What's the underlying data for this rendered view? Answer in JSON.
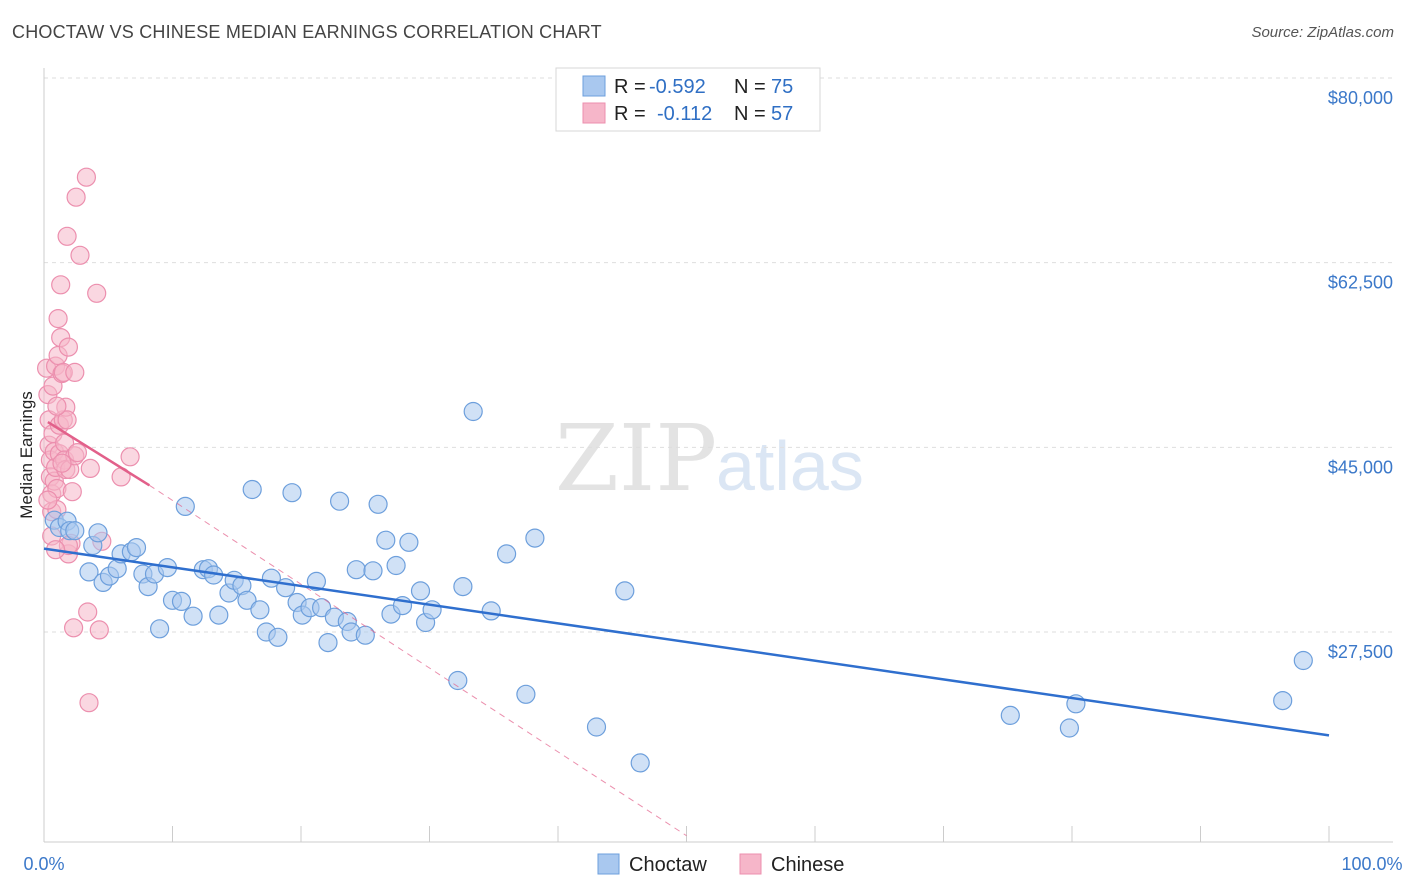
{
  "header": {
    "title": "CHOCTAW VS CHINESE MEDIAN EARNINGS CORRELATION CHART",
    "source": "Source: ZipAtlas.com"
  },
  "watermark": {
    "zip": "ZIP",
    "atlas": "atlas"
  },
  "colors": {
    "choctaw_fill": "#a9c8ef",
    "choctaw_stroke": "#6d9fdc",
    "choctaw_line": "#2f6fce",
    "chinese_fill": "#f6b6c9",
    "chinese_stroke": "#ec8fae",
    "chinese_line": "#e2608a",
    "axis_text": "#3b78c9",
    "grid": "#dedede"
  },
  "legend": {
    "choctaw": {
      "r_label": "R =",
      "r_value": "-0.592",
      "n_label": "N =",
      "n_value": "75"
    },
    "chinese": {
      "r_label": "R =",
      "r_value": "-0.112",
      "n_label": "N =",
      "n_value": "57"
    }
  },
  "bottom_legend": {
    "choctaw": "Choctaw",
    "chinese": "Chinese"
  },
  "chart_data": {
    "type": "scatter",
    "title": "CHOCTAW VS CHINESE MEDIAN EARNINGS CORRELATION CHART",
    "xlabel": "",
    "ylabel": "Median Earnings",
    "xlim": [
      0,
      100
    ],
    "ylim": [
      9000,
      84000
    ],
    "x_tick_labels": [
      "0.0%",
      "100.0%"
    ],
    "y_ticks": [
      27500,
      45000,
      62500,
      80000
    ],
    "y_tick_labels": [
      "$27,500",
      "$45,000",
      "$62,500",
      "$80,000"
    ],
    "grid": true,
    "series": [
      {
        "name": "Choctaw",
        "r": -0.592,
        "n": 75,
        "trend": {
          "x": [
            0,
            100
          ],
          "y": [
            37200,
            19500
          ]
        },
        "points": [
          [
            0.8,
            39900
          ],
          [
            1.2,
            39200
          ],
          [
            1.8,
            39800
          ],
          [
            2.0,
            38900
          ],
          [
            2.4,
            38900
          ],
          [
            3.5,
            35000
          ],
          [
            3.8,
            37500
          ],
          [
            4.2,
            38700
          ],
          [
            4.6,
            34000
          ],
          [
            5.1,
            34600
          ],
          [
            5.7,
            35300
          ],
          [
            6.0,
            36700
          ],
          [
            6.8,
            36900
          ],
          [
            7.2,
            37300
          ],
          [
            7.7,
            34800
          ],
          [
            8.1,
            33600
          ],
          [
            8.6,
            34800
          ],
          [
            9.0,
            29600
          ],
          [
            9.6,
            35400
          ],
          [
            10.0,
            32300
          ],
          [
            10.7,
            32200
          ],
          [
            11.0,
            41200
          ],
          [
            11.6,
            30800
          ],
          [
            12.4,
            35200
          ],
          [
            12.8,
            35300
          ],
          [
            13.2,
            34700
          ],
          [
            13.6,
            30900
          ],
          [
            14.4,
            33000
          ],
          [
            14.8,
            34200
          ],
          [
            15.4,
            33700
          ],
          [
            15.8,
            32300
          ],
          [
            16.2,
            42800
          ],
          [
            16.8,
            31400
          ],
          [
            17.3,
            29300
          ],
          [
            17.7,
            34400
          ],
          [
            18.2,
            28800
          ],
          [
            18.8,
            33500
          ],
          [
            19.3,
            42500
          ],
          [
            19.7,
            32100
          ],
          [
            20.1,
            30900
          ],
          [
            20.7,
            31600
          ],
          [
            21.2,
            34100
          ],
          [
            21.6,
            31600
          ],
          [
            22.1,
            28300
          ],
          [
            22.6,
            30700
          ],
          [
            23.0,
            41700
          ],
          [
            23.6,
            30300
          ],
          [
            23.9,
            29300
          ],
          [
            24.3,
            35200
          ],
          [
            25.0,
            29000
          ],
          [
            25.6,
            35100
          ],
          [
            26.0,
            41400
          ],
          [
            26.6,
            38000
          ],
          [
            27.0,
            31000
          ],
          [
            27.4,
            35600
          ],
          [
            27.9,
            31800
          ],
          [
            28.4,
            37800
          ],
          [
            29.3,
            33200
          ],
          [
            29.7,
            30200
          ],
          [
            30.2,
            31400
          ],
          [
            32.2,
            24700
          ],
          [
            32.6,
            33600
          ],
          [
            33.4,
            50200
          ],
          [
            34.8,
            31300
          ],
          [
            36.0,
            36700
          ],
          [
            37.5,
            23400
          ],
          [
            38.2,
            38200
          ],
          [
            43.0,
            20300
          ],
          [
            45.2,
            33200
          ],
          [
            46.4,
            16900
          ],
          [
            75.2,
            21400
          ],
          [
            79.8,
            20200
          ],
          [
            80.3,
            22500
          ],
          [
            96.4,
            22800
          ],
          [
            98.0,
            26600
          ]
        ]
      },
      {
        "name": "Chinese",
        "r": -0.112,
        "n": 57,
        "trend": {
          "x": [
            0.3,
            8.2
          ],
          "y": [
            49200,
            43200
          ]
        },
        "trend_extension": {
          "x": [
            8.2,
            50.0
          ],
          "y": [
            43200,
            10000
          ]
        },
        "points": [
          [
            0.2,
            54300
          ],
          [
            0.3,
            51800
          ],
          [
            0.4,
            49400
          ],
          [
            0.4,
            47000
          ],
          [
            0.5,
            45600
          ],
          [
            0.5,
            44000
          ],
          [
            0.6,
            42400
          ],
          [
            0.6,
            40700
          ],
          [
            0.7,
            52600
          ],
          [
            0.7,
            48100
          ],
          [
            0.8,
            46400
          ],
          [
            0.8,
            43600
          ],
          [
            0.9,
            54500
          ],
          [
            0.9,
            44900
          ],
          [
            1.0,
            42900
          ],
          [
            1.0,
            40900
          ],
          [
            1.1,
            59000
          ],
          [
            1.1,
            55500
          ],
          [
            1.2,
            48900
          ],
          [
            1.2,
            46200
          ],
          [
            1.3,
            62200
          ],
          [
            1.3,
            57200
          ],
          [
            1.4,
            53800
          ],
          [
            1.5,
            53900
          ],
          [
            1.5,
            49400
          ],
          [
            1.6,
            47200
          ],
          [
            1.6,
            45600
          ],
          [
            1.7,
            50600
          ],
          [
            1.7,
            44700
          ],
          [
            1.8,
            49400
          ],
          [
            1.8,
            66800
          ],
          [
            1.9,
            36700
          ],
          [
            1.9,
            56300
          ],
          [
            2.0,
            44700
          ],
          [
            2.1,
            37700
          ],
          [
            2.2,
            42600
          ],
          [
            2.3,
            29700
          ],
          [
            2.4,
            53900
          ],
          [
            2.4,
            46000
          ],
          [
            2.5,
            70500
          ],
          [
            2.8,
            65000
          ],
          [
            3.3,
            72400
          ],
          [
            3.4,
            31200
          ],
          [
            3.5,
            22600
          ],
          [
            3.6,
            44800
          ],
          [
            4.1,
            61400
          ],
          [
            4.3,
            29500
          ],
          [
            4.5,
            37900
          ],
          [
            6.0,
            44000
          ],
          [
            6.7,
            45900
          ],
          [
            0.3,
            41800
          ],
          [
            0.6,
            38400
          ],
          [
            1.0,
            50700
          ],
          [
            1.4,
            45300
          ],
          [
            1.9,
            37500
          ],
          [
            2.6,
            46300
          ],
          [
            0.9,
            37100
          ]
        ]
      }
    ]
  }
}
